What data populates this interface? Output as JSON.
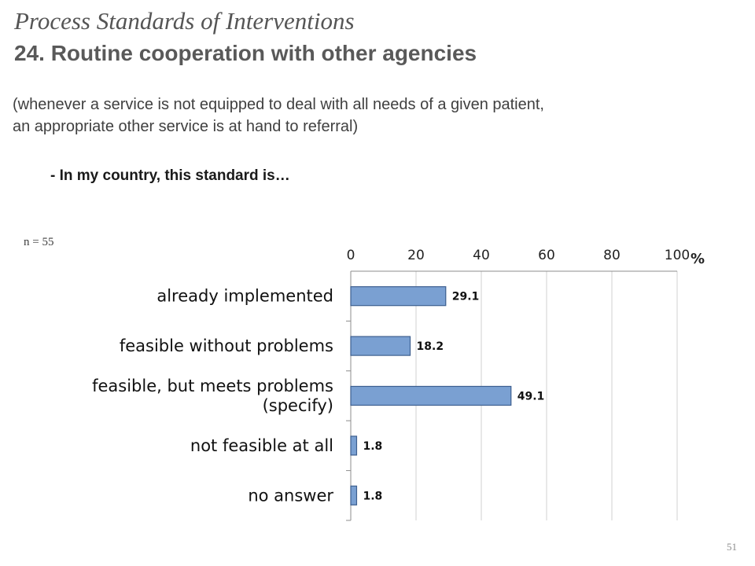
{
  "slide": {
    "title": "Process Standards of Interventions",
    "subtitle": "24. Routine cooperation with other agencies",
    "description_line1": "(whenever a service is not equipped to deal with all needs of a given patient,",
    "description_line2": "an appropriate other service is at hand to referral)",
    "question": "- In my country, this standard is…",
    "sample_size": "n = 55",
    "page_number": "51"
  },
  "chart_data": {
    "type": "bar",
    "orientation": "horizontal",
    "axis_position": "top",
    "xlim": [
      0,
      100
    ],
    "xticks": [
      0,
      20,
      40,
      60,
      80,
      100
    ],
    "unit_label": "%",
    "grid": true,
    "categories": [
      [
        "already implemented"
      ],
      [
        "feasible without problems"
      ],
      [
        "feasible, but meets problems",
        "(specify)"
      ],
      [
        "not feasible at all"
      ],
      [
        "no answer"
      ]
    ],
    "values": [
      29.1,
      18.2,
      49.1,
      1.8,
      1.8
    ],
    "data_labels": [
      "29.1",
      "18.2",
      "49.1",
      "1.8",
      "1.8"
    ],
    "bar_color": "#7aa0d2",
    "bar_edge_color": "#3d5f8f",
    "grid_color": "#d0d0d0",
    "axis_color": "#8c8c8c"
  }
}
